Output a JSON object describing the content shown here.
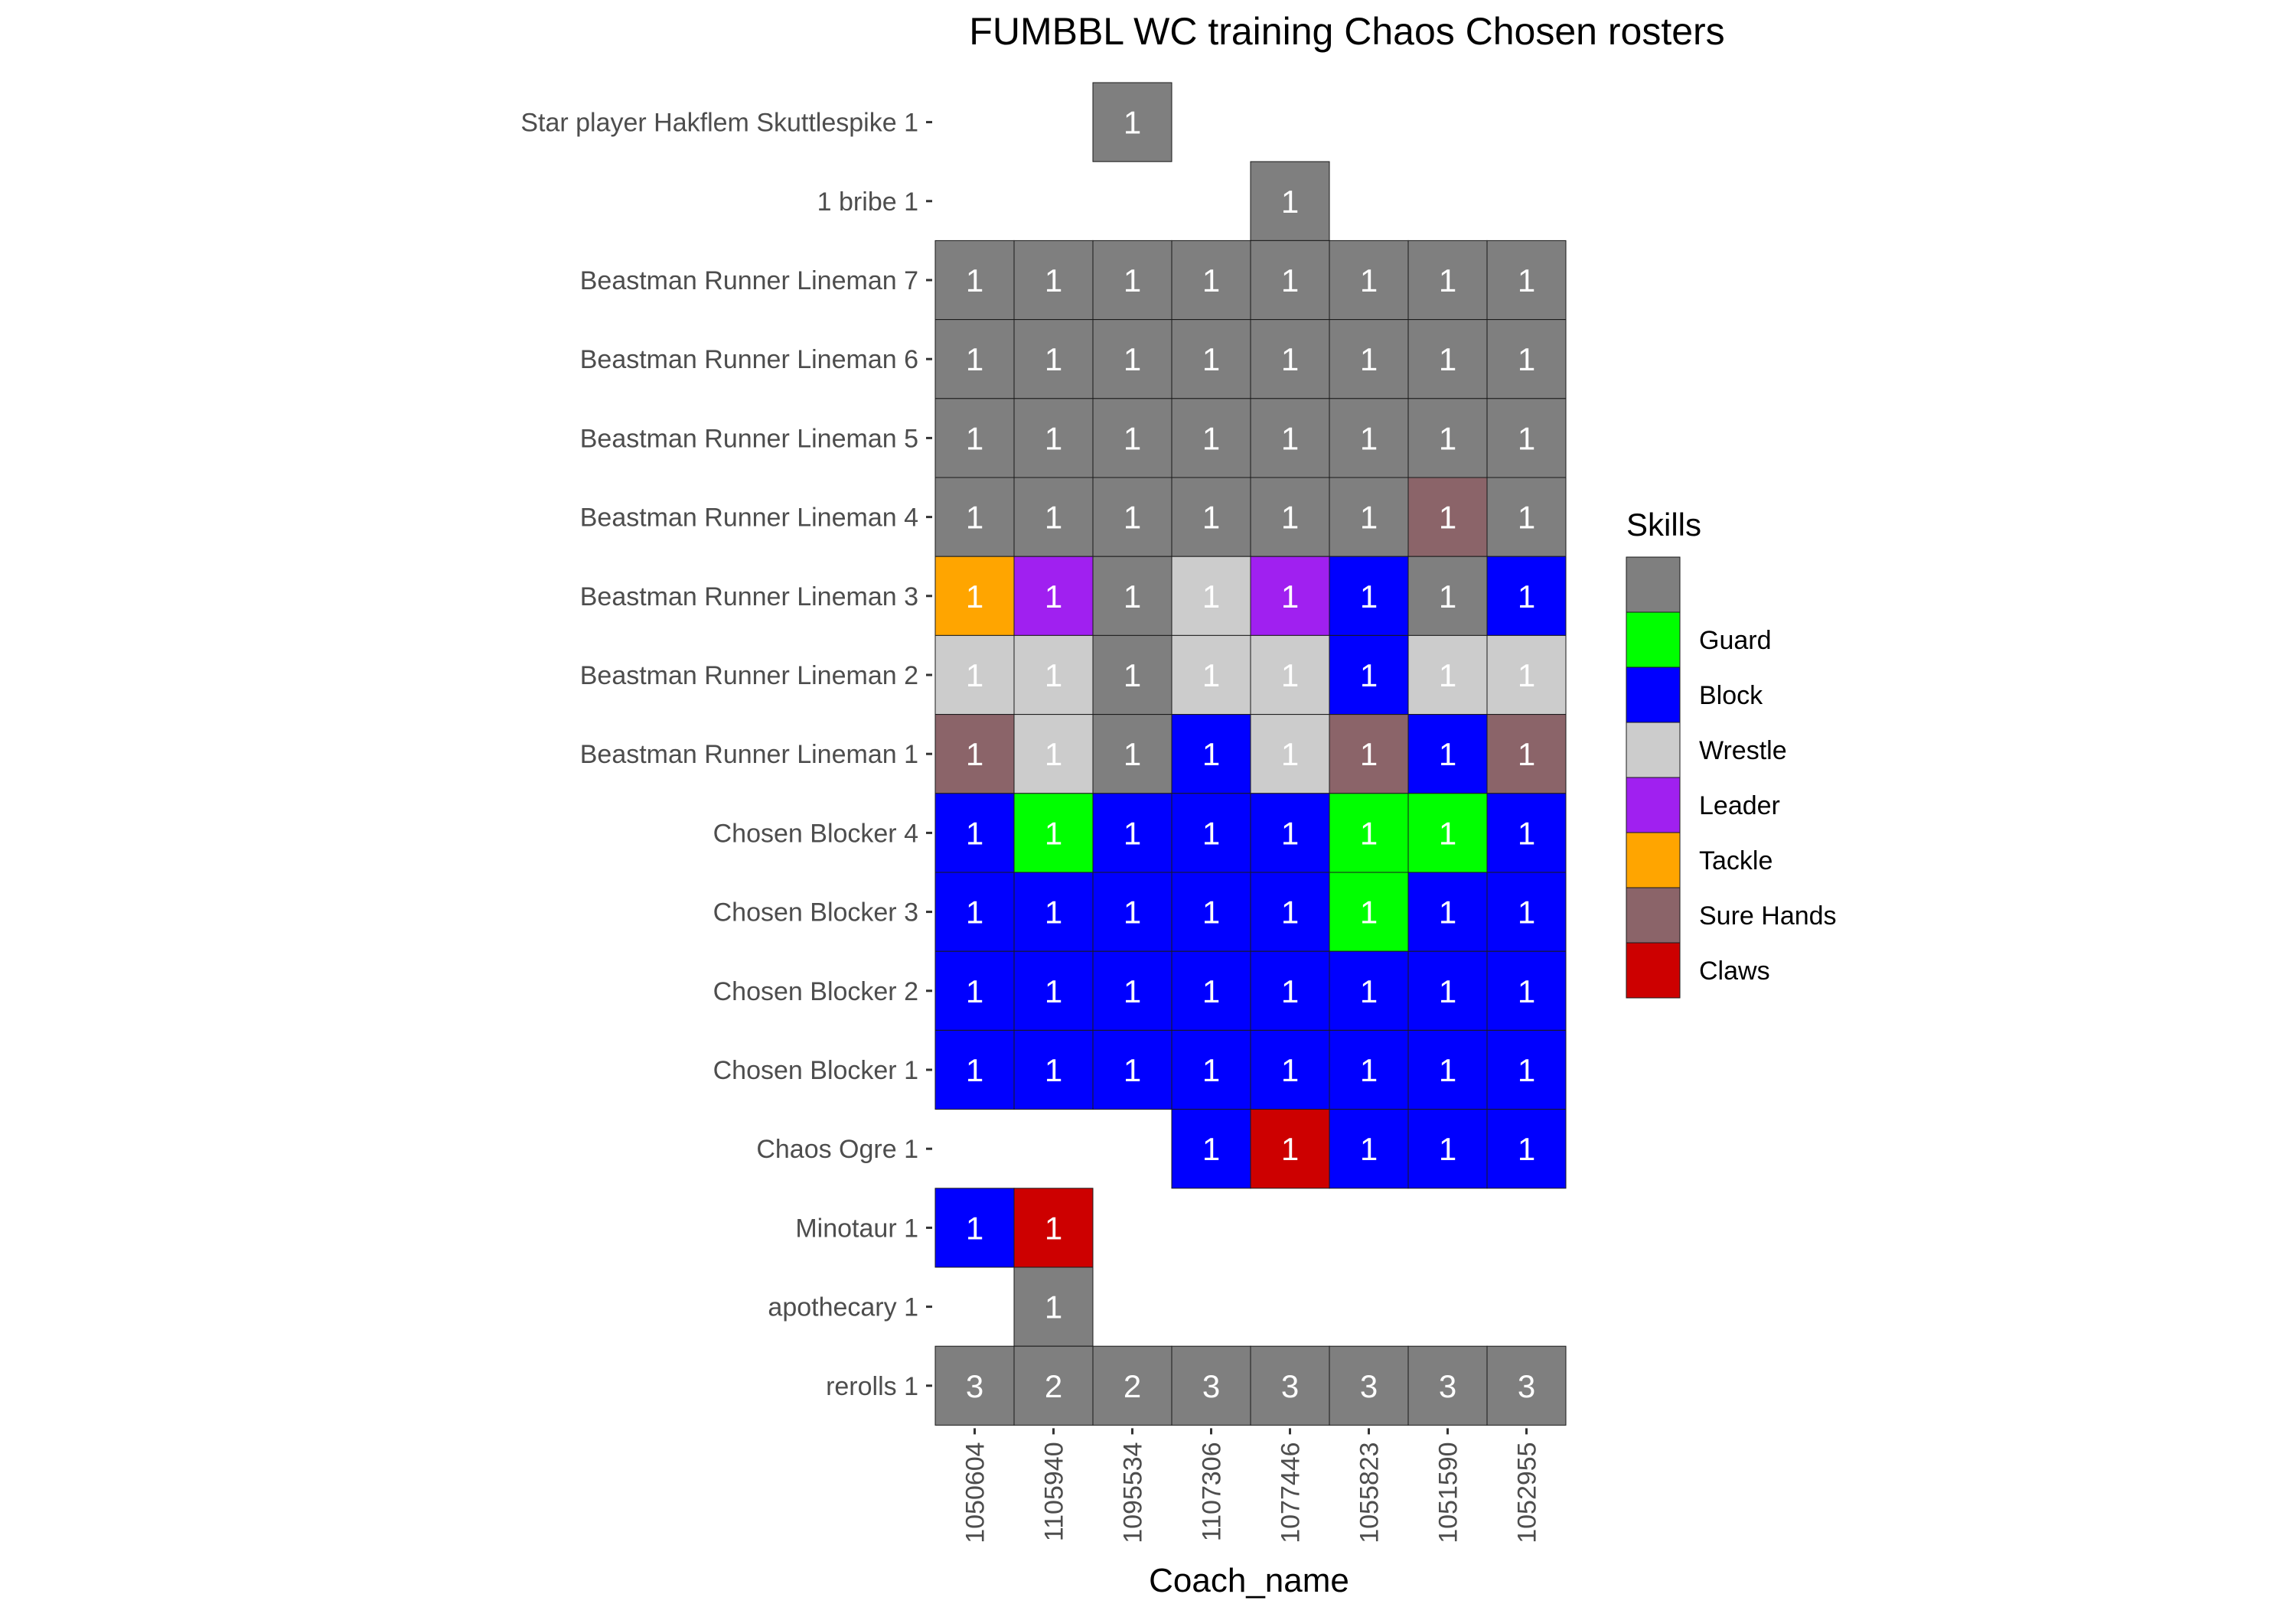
{
  "chart_data": {
    "type": "heatmap",
    "title": "FUMBBL WC training Chaos Chosen rosters",
    "xlabel": "Coach_name",
    "ylabel": "",
    "x_categories": [
      "1050604",
      "1105940",
      "1095534",
      "1107306",
      "1077446",
      "1055823",
      "1051590",
      "1052955"
    ],
    "y_categories": [
      "Star player Hakflem Skuttlespike 1",
      "1 bribe 1",
      "Beastman Runner Lineman 7",
      "Beastman Runner Lineman 6",
      "Beastman Runner Lineman 5",
      "Beastman Runner Lineman 4",
      "Beastman Runner Lineman 3",
      "Beastman Runner Lineman 2",
      "Beastman Runner Lineman 1",
      "Chosen Blocker 4",
      "Chosen Blocker 3",
      "Chosen Blocker 2",
      "Chosen Blocker 1",
      "Chaos Ogre 1",
      "Minotaur 1",
      "apothecary 1",
      "rerolls 1"
    ],
    "legend": {
      "title": "Skills",
      "position": "right",
      "items": [
        {
          "label": "",
          "color": "#7f7f7f"
        },
        {
          "label": "Guard",
          "color": "#00ff00"
        },
        {
          "label": "Block",
          "color": "#0000ff"
        },
        {
          "label": "Wrestle",
          "color": "#cccccc"
        },
        {
          "label": "Leader",
          "color": "#a020f0"
        },
        {
          "label": "Tackle",
          "color": "#ffa500"
        },
        {
          "label": "Sure Hands",
          "color": "#8b6469"
        },
        {
          "label": "Claws",
          "color": "#cd0000"
        }
      ]
    },
    "cells": [
      [
        "",
        "",
        "g:1",
        "",
        "",
        "",
        "",
        ""
      ],
      [
        "",
        "",
        "",
        "",
        "g:1",
        "",
        "",
        ""
      ],
      [
        "g:1",
        "g:1",
        "g:1",
        "g:1",
        "g:1",
        "g:1",
        "g:1",
        "g:1"
      ],
      [
        "g:1",
        "g:1",
        "g:1",
        "g:1",
        "g:1",
        "g:1",
        "g:1",
        "g:1"
      ],
      [
        "g:1",
        "g:1",
        "g:1",
        "g:1",
        "g:1",
        "g:1",
        "g:1",
        "g:1"
      ],
      [
        "g:1",
        "g:1",
        "g:1",
        "g:1",
        "g:1",
        "g:1",
        "s:1",
        "g:1"
      ],
      [
        "t:1",
        "l:1",
        "g:1",
        "w:1",
        "l:1",
        "b:1",
        "g:1",
        "b:1"
      ],
      [
        "w:1",
        "w:1",
        "g:1",
        "w:1",
        "w:1",
        "b:1",
        "w:1",
        "w:1"
      ],
      [
        "s:1",
        "w:1",
        "g:1",
        "b:1",
        "w:1",
        "s:1",
        "b:1",
        "s:1"
      ],
      [
        "b:1",
        "G:1",
        "b:1",
        "b:1",
        "b:1",
        "G:1",
        "G:1",
        "b:1"
      ],
      [
        "b:1",
        "b:1",
        "b:1",
        "b:1",
        "b:1",
        "G:1",
        "b:1",
        "b:1"
      ],
      [
        "b:1",
        "b:1",
        "b:1",
        "b:1",
        "b:1",
        "b:1",
        "b:1",
        "b:1"
      ],
      [
        "b:1",
        "b:1",
        "b:1",
        "b:1",
        "b:1",
        "b:1",
        "b:1",
        "b:1"
      ],
      [
        "",
        "",
        "",
        "b:1",
        "c:1",
        "b:1",
        "b:1",
        "b:1"
      ],
      [
        "b:1",
        "c:1",
        "",
        "",
        "",
        "",
        "",
        ""
      ],
      [
        "",
        "g:1",
        "",
        "",
        "",
        "",
        "",
        ""
      ],
      [
        "g:3",
        "g:2",
        "g:2",
        "g:3",
        "g:3",
        "g:3",
        "g:3",
        "g:3"
      ]
    ],
    "skill_codes": {
      "g": "",
      "G": "Guard",
      "b": "Block",
      "w": "Wrestle",
      "l": "Leader",
      "t": "Tackle",
      "s": "Sure Hands",
      "c": "Claws"
    }
  }
}
